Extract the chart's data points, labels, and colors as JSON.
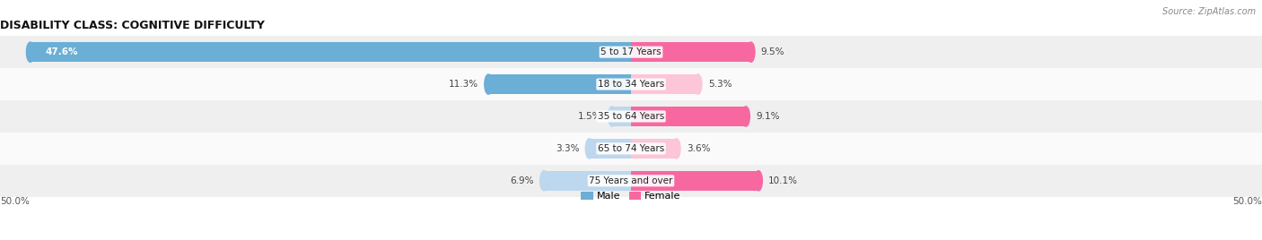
{
  "title": "DISABILITY CLASS: COGNITIVE DIFFICULTY",
  "source": "Source: ZipAtlas.com",
  "categories": [
    "5 to 17 Years",
    "18 to 34 Years",
    "35 to 64 Years",
    "65 to 74 Years",
    "75 Years and over"
  ],
  "male_values": [
    47.6,
    11.3,
    1.5,
    3.3,
    6.9
  ],
  "female_values": [
    9.5,
    5.3,
    9.1,
    3.6,
    10.1
  ],
  "male_color_dark": "#6baed6",
  "male_color_light": "#bdd7ee",
  "female_color_dark": "#f768a1",
  "female_color_light": "#fcc5d8",
  "row_bg_even": "#efefef",
  "row_bg_odd": "#fafafa",
  "max_value": 50.0,
  "axis_label_left": "50.0%",
  "axis_label_right": "50.0%",
  "title_fontsize": 9,
  "label_fontsize": 7.5,
  "cat_fontsize": 7.5,
  "bar_height": 0.62,
  "figsize": [
    14.06,
    2.68
  ],
  "dpi": 100,
  "male_colors": [
    "#6baed6",
    "#6baed6",
    "#bdd7ee",
    "#bdd7ee",
    "#bdd7ee"
  ],
  "female_colors": [
    "#f768a1",
    "#fcc5d8",
    "#f768a1",
    "#fcc5d8",
    "#f768a1"
  ]
}
